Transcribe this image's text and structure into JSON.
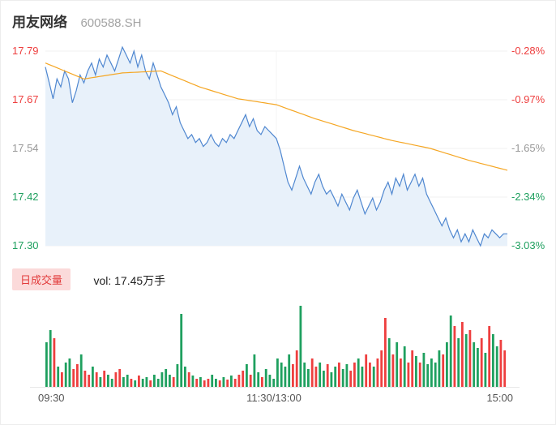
{
  "header": {
    "stock_name": "用友网络",
    "stock_code": "600588.SH"
  },
  "colors": {
    "up_red": "#ee3f3f",
    "down_green": "#1fa05f",
    "neutral_gray": "#999999",
    "price_line": "#4f87d0",
    "price_fill": "#e8f1fa",
    "avg_line": "#f5a623",
    "grid": "#f0f0f0",
    "badge_bg": "#fbdada",
    "badge_text": "#e23b3b"
  },
  "price_axis": {
    "left_labels": [
      {
        "text": "17.79",
        "tone": "up"
      },
      {
        "text": "17.67",
        "tone": "up"
      },
      {
        "text": "17.54",
        "tone": "neutral"
      },
      {
        "text": "17.42",
        "tone": "down"
      },
      {
        "text": "17.30",
        "tone": "down"
      }
    ],
    "right_labels": [
      {
        "text": "-0.28%",
        "tone": "up"
      },
      {
        "text": "-0.97%",
        "tone": "up"
      },
      {
        "text": "-1.65%",
        "tone": "neutral"
      },
      {
        "text": "-2.34%",
        "tone": "down"
      },
      {
        "text": "-3.03%",
        "tone": "down"
      }
    ]
  },
  "volume_header": {
    "badge_label": "日成交量",
    "vol_text": "vol: 17.45万手"
  },
  "x_axis": {
    "labels": [
      "09:30",
      "11:30/13:00",
      "15:00"
    ]
  },
  "chart_data": {
    "type": "line",
    "title": "用友网络 600588.SH 分时走势",
    "value_range": [
      17.3,
      17.79
    ],
    "axis_left_prices": [
      17.79,
      17.67,
      17.54,
      17.42,
      17.3
    ],
    "axis_right_pct": [
      "-0.28%",
      "-0.97%",
      "-1.65%",
      "-2.34%",
      "-3.03%"
    ],
    "x_tick_labels": [
      "09:30",
      "11:30/13:00",
      "15:00"
    ],
    "sample_interval_minutes": 2,
    "series": [
      {
        "name": "price",
        "values": [
          17.75,
          17.71,
          17.67,
          17.72,
          17.7,
          17.74,
          17.72,
          17.66,
          17.69,
          17.73,
          17.71,
          17.74,
          17.76,
          17.73,
          17.77,
          17.75,
          17.78,
          17.76,
          17.74,
          17.77,
          17.8,
          17.78,
          17.76,
          17.79,
          17.75,
          17.78,
          17.74,
          17.72,
          17.76,
          17.73,
          17.7,
          17.68,
          17.66,
          17.63,
          17.65,
          17.61,
          17.59,
          17.57,
          17.58,
          17.56,
          17.57,
          17.55,
          17.56,
          17.58,
          17.56,
          17.55,
          17.57,
          17.56,
          17.58,
          17.57,
          17.59,
          17.61,
          17.63,
          17.6,
          17.62,
          17.59,
          17.58,
          17.6,
          17.59,
          17.58,
          17.57,
          17.54,
          17.5,
          17.46,
          17.44,
          17.47,
          17.5,
          17.47,
          17.45,
          17.43,
          17.46,
          17.48,
          17.45,
          17.43,
          17.44,
          17.42,
          17.4,
          17.43,
          17.41,
          17.39,
          17.42,
          17.44,
          17.41,
          17.38,
          17.4,
          17.42,
          17.39,
          17.41,
          17.44,
          17.46,
          17.43,
          17.47,
          17.45,
          17.48,
          17.44,
          17.46,
          17.48,
          17.45,
          17.47,
          17.43,
          17.41,
          17.39,
          17.37,
          17.35,
          17.37,
          17.34,
          17.32,
          17.34,
          17.31,
          17.33,
          17.31,
          17.34,
          17.32,
          17.3,
          17.33,
          17.32,
          17.34,
          17.33,
          17.32,
          17.33,
          17.33
        ]
      },
      {
        "name": "avg_price",
        "keypoint_interval_samples": 10,
        "values": [
          17.76,
          17.72,
          17.735,
          17.74,
          17.7,
          17.67,
          17.655,
          17.62,
          17.59,
          17.565,
          17.545,
          17.515,
          17.49
        ]
      }
    ],
    "volume": {
      "total_label": "17.45万手",
      "unit": "relative",
      "values": [
        55,
        70,
        60,
        25,
        18,
        30,
        35,
        22,
        28,
        40,
        20,
        15,
        25,
        18,
        12,
        20,
        15,
        10,
        18,
        22,
        12,
        15,
        10,
        8,
        14,
        10,
        12,
        8,
        15,
        10,
        18,
        22,
        15,
        12,
        28,
        90,
        25,
        18,
        14,
        10,
        12,
        8,
        10,
        15,
        10,
        8,
        12,
        9,
        14,
        10,
        15,
        20,
        28,
        15,
        40,
        18,
        12,
        22,
        15,
        10,
        35,
        30,
        25,
        40,
        28,
        45,
        100,
        30,
        22,
        35,
        25,
        30,
        20,
        28,
        18,
        25,
        30,
        22,
        28,
        20,
        30,
        35,
        25,
        40,
        30,
        25,
        35,
        45,
        85,
        60,
        40,
        55,
        35,
        50,
        30,
        45,
        38,
        30,
        42,
        28,
        35,
        30,
        45,
        40,
        55,
        88,
        75,
        60,
        80,
        65,
        70,
        55,
        48,
        60,
        42,
        75,
        65,
        50,
        58,
        45
      ]
    }
  }
}
